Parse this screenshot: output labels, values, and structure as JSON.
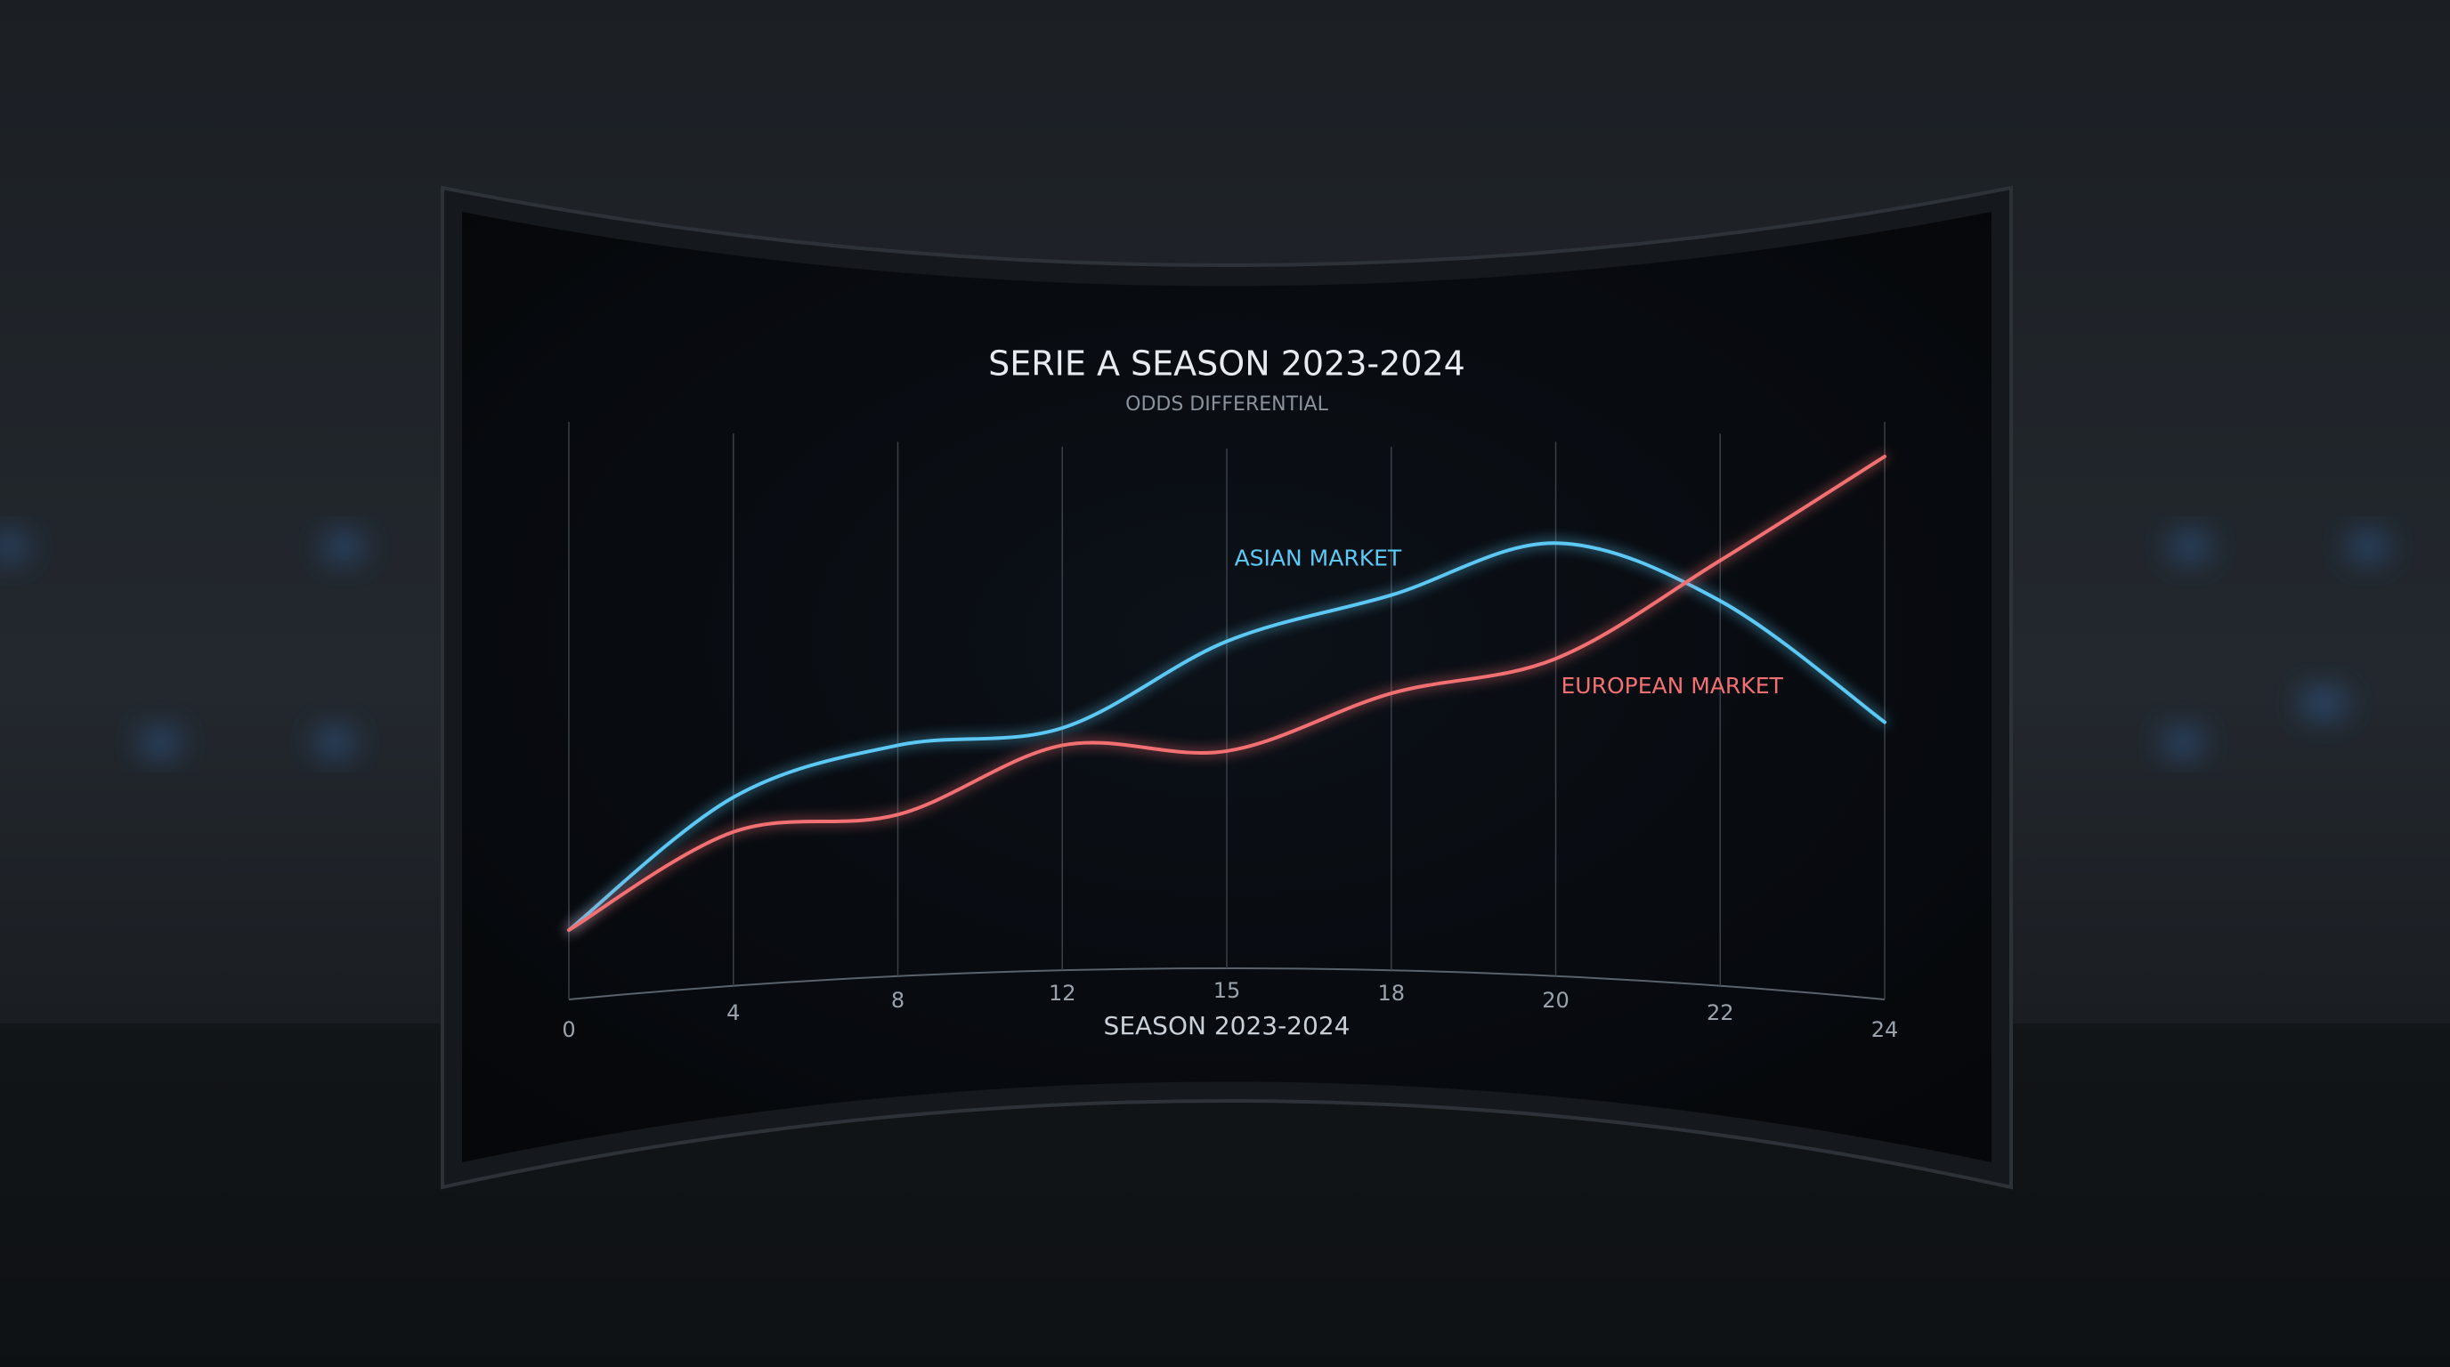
{
  "chart_data": {
    "type": "line",
    "title": "SERIE A SEASON 2023-2024",
    "subtitle": "ODDS DIFFERENTIAL",
    "x_label": "SEASON 2023-2024",
    "categories": [
      "0",
      "4",
      "8",
      "12",
      "15",
      "18",
      "20",
      "22",
      "24"
    ],
    "series": [
      {
        "name": "ASIAN MARKET",
        "color": "#5cc8f5",
        "values": [
          12,
          35,
          44,
          47,
          62,
          70,
          79,
          69,
          48
        ]
      },
      {
        "name": "EUROPEAN MARKET",
        "color": "#f26f72",
        "values": [
          12,
          29,
          32,
          44,
          43,
          53,
          59,
          76,
          94
        ]
      }
    ],
    "ylim": [
      0,
      100
    ],
    "grid": true
  }
}
